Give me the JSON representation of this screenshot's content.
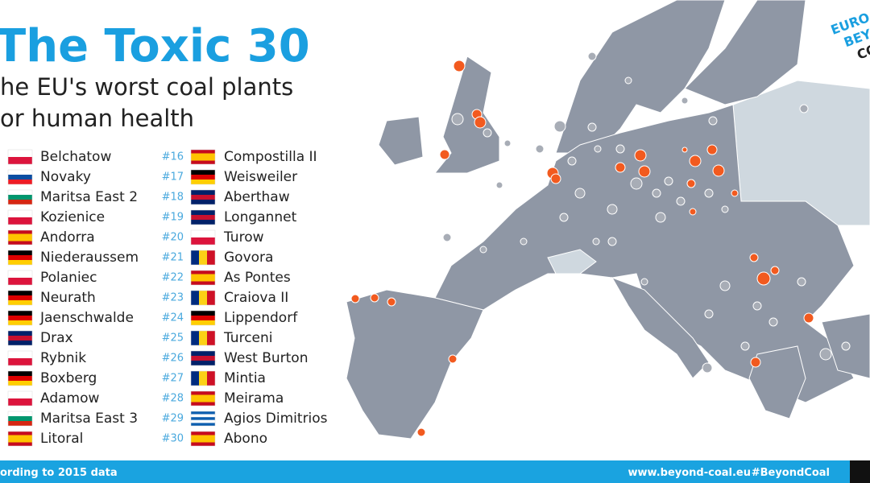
{
  "header": {
    "title": "The Toxic 30",
    "subtitle_lines": [
      "he EU's worst coal plants",
      "or human health"
    ]
  },
  "logo": {
    "lines": [
      "EURO",
      "BEYO",
      "COA"
    ]
  },
  "list_left": [
    {
      "name": "Belchatow",
      "flag": [
        "#ffffff",
        "#dc143c"
      ]
    },
    {
      "name": "Novaky",
      "flag": [
        "#ffffff",
        "#0b4ea2",
        "#ee1c25"
      ]
    },
    {
      "name": "Maritsa East 2",
      "flag": [
        "#ffffff",
        "#00966e",
        "#d62612"
      ]
    },
    {
      "name": "Kozienice",
      "flag": [
        "#ffffff",
        "#dc143c"
      ]
    },
    {
      "name": "Andorra",
      "flag": [
        "#c60b1e",
        "#ffc400",
        "#ffc400",
        "#c60b1e"
      ]
    },
    {
      "name": "Niederaussem",
      "flag": [
        "#000000",
        "#dd0000",
        "#ffce00"
      ]
    },
    {
      "name": "Polaniec",
      "flag": [
        "#ffffff",
        "#dc143c"
      ]
    },
    {
      "name": "Neurath",
      "flag": [
        "#000000",
        "#dd0000",
        "#ffce00"
      ]
    },
    {
      "name": "Jaenschwalde",
      "flag": [
        "#000000",
        "#dd0000",
        "#ffce00"
      ]
    },
    {
      "name": "Drax",
      "flag": [
        "#012169",
        "#c8102e",
        "#012169"
      ]
    },
    {
      "name": "Rybnik",
      "flag": [
        "#ffffff",
        "#dc143c"
      ]
    },
    {
      "name": "Boxberg",
      "flag": [
        "#000000",
        "#dd0000",
        "#ffce00"
      ]
    },
    {
      "name": "Adamow",
      "flag": [
        "#ffffff",
        "#dc143c"
      ]
    },
    {
      "name": "Maritsa East 3",
      "flag": [
        "#ffffff",
        "#00966e",
        "#d62612"
      ]
    },
    {
      "name": "Litoral",
      "flag": [
        "#c60b1e",
        "#ffc400",
        "#ffc400",
        "#c60b1e"
      ]
    }
  ],
  "list_right": [
    {
      "rank": "#16",
      "name": "Compostilla II",
      "flag": [
        "#c60b1e",
        "#ffc400",
        "#ffc400",
        "#c60b1e"
      ]
    },
    {
      "rank": "#17",
      "name": "Weisweiler",
      "flag": [
        "#000000",
        "#dd0000",
        "#ffce00"
      ]
    },
    {
      "rank": "#18",
      "name": "Aberthaw",
      "flag": [
        "#012169",
        "#c8102e",
        "#012169"
      ]
    },
    {
      "rank": "#19",
      "name": "Longannet",
      "flag": [
        "#012169",
        "#c8102e",
        "#012169"
      ]
    },
    {
      "rank": "#20",
      "name": "Turow",
      "flag": [
        "#ffffff",
        "#dc143c"
      ]
    },
    {
      "rank": "#21",
      "name": "Govora",
      "flag": [
        "#002b7f",
        "#fcd116",
        "#ce1126"
      ],
      "vertical": true
    },
    {
      "rank": "#22",
      "name": "As Pontes",
      "flag": [
        "#c60b1e",
        "#ffc400",
        "#ffc400",
        "#c60b1e"
      ]
    },
    {
      "rank": "#23",
      "name": "Craiova II",
      "flag": [
        "#002b7f",
        "#fcd116",
        "#ce1126"
      ],
      "vertical": true
    },
    {
      "rank": "#24",
      "name": "Lippendorf",
      "flag": [
        "#000000",
        "#dd0000",
        "#ffce00"
      ]
    },
    {
      "rank": "#25",
      "name": "Turceni",
      "flag": [
        "#002b7f",
        "#fcd116",
        "#ce1126"
      ],
      "vertical": true
    },
    {
      "rank": "#26",
      "name": "West Burton",
      "flag": [
        "#012169",
        "#c8102e",
        "#012169"
      ]
    },
    {
      "rank": "#27",
      "name": "Mintia",
      "flag": [
        "#002b7f",
        "#fcd116",
        "#ce1126"
      ],
      "vertical": true
    },
    {
      "rank": "#28",
      "name": "Meirama",
      "flag": [
        "#c60b1e",
        "#ffc400",
        "#ffc400",
        "#c60b1e"
      ]
    },
    {
      "rank": "#29",
      "name": "Agios Dimitrios",
      "flag": [
        "#0d5eaf",
        "#ffffff",
        "#0d5eaf",
        "#ffffff",
        "#0d5eaf"
      ]
    },
    {
      "rank": "#30",
      "name": "Abono",
      "flag": [
        "#c60b1e",
        "#ffc400",
        "#ffc400",
        "#c60b1e"
      ]
    }
  ],
  "footer": {
    "note": "ording to 2015 data",
    "url": "www.beyond-coal.eu",
    "hashtag": "#BeyondCoal"
  }
}
